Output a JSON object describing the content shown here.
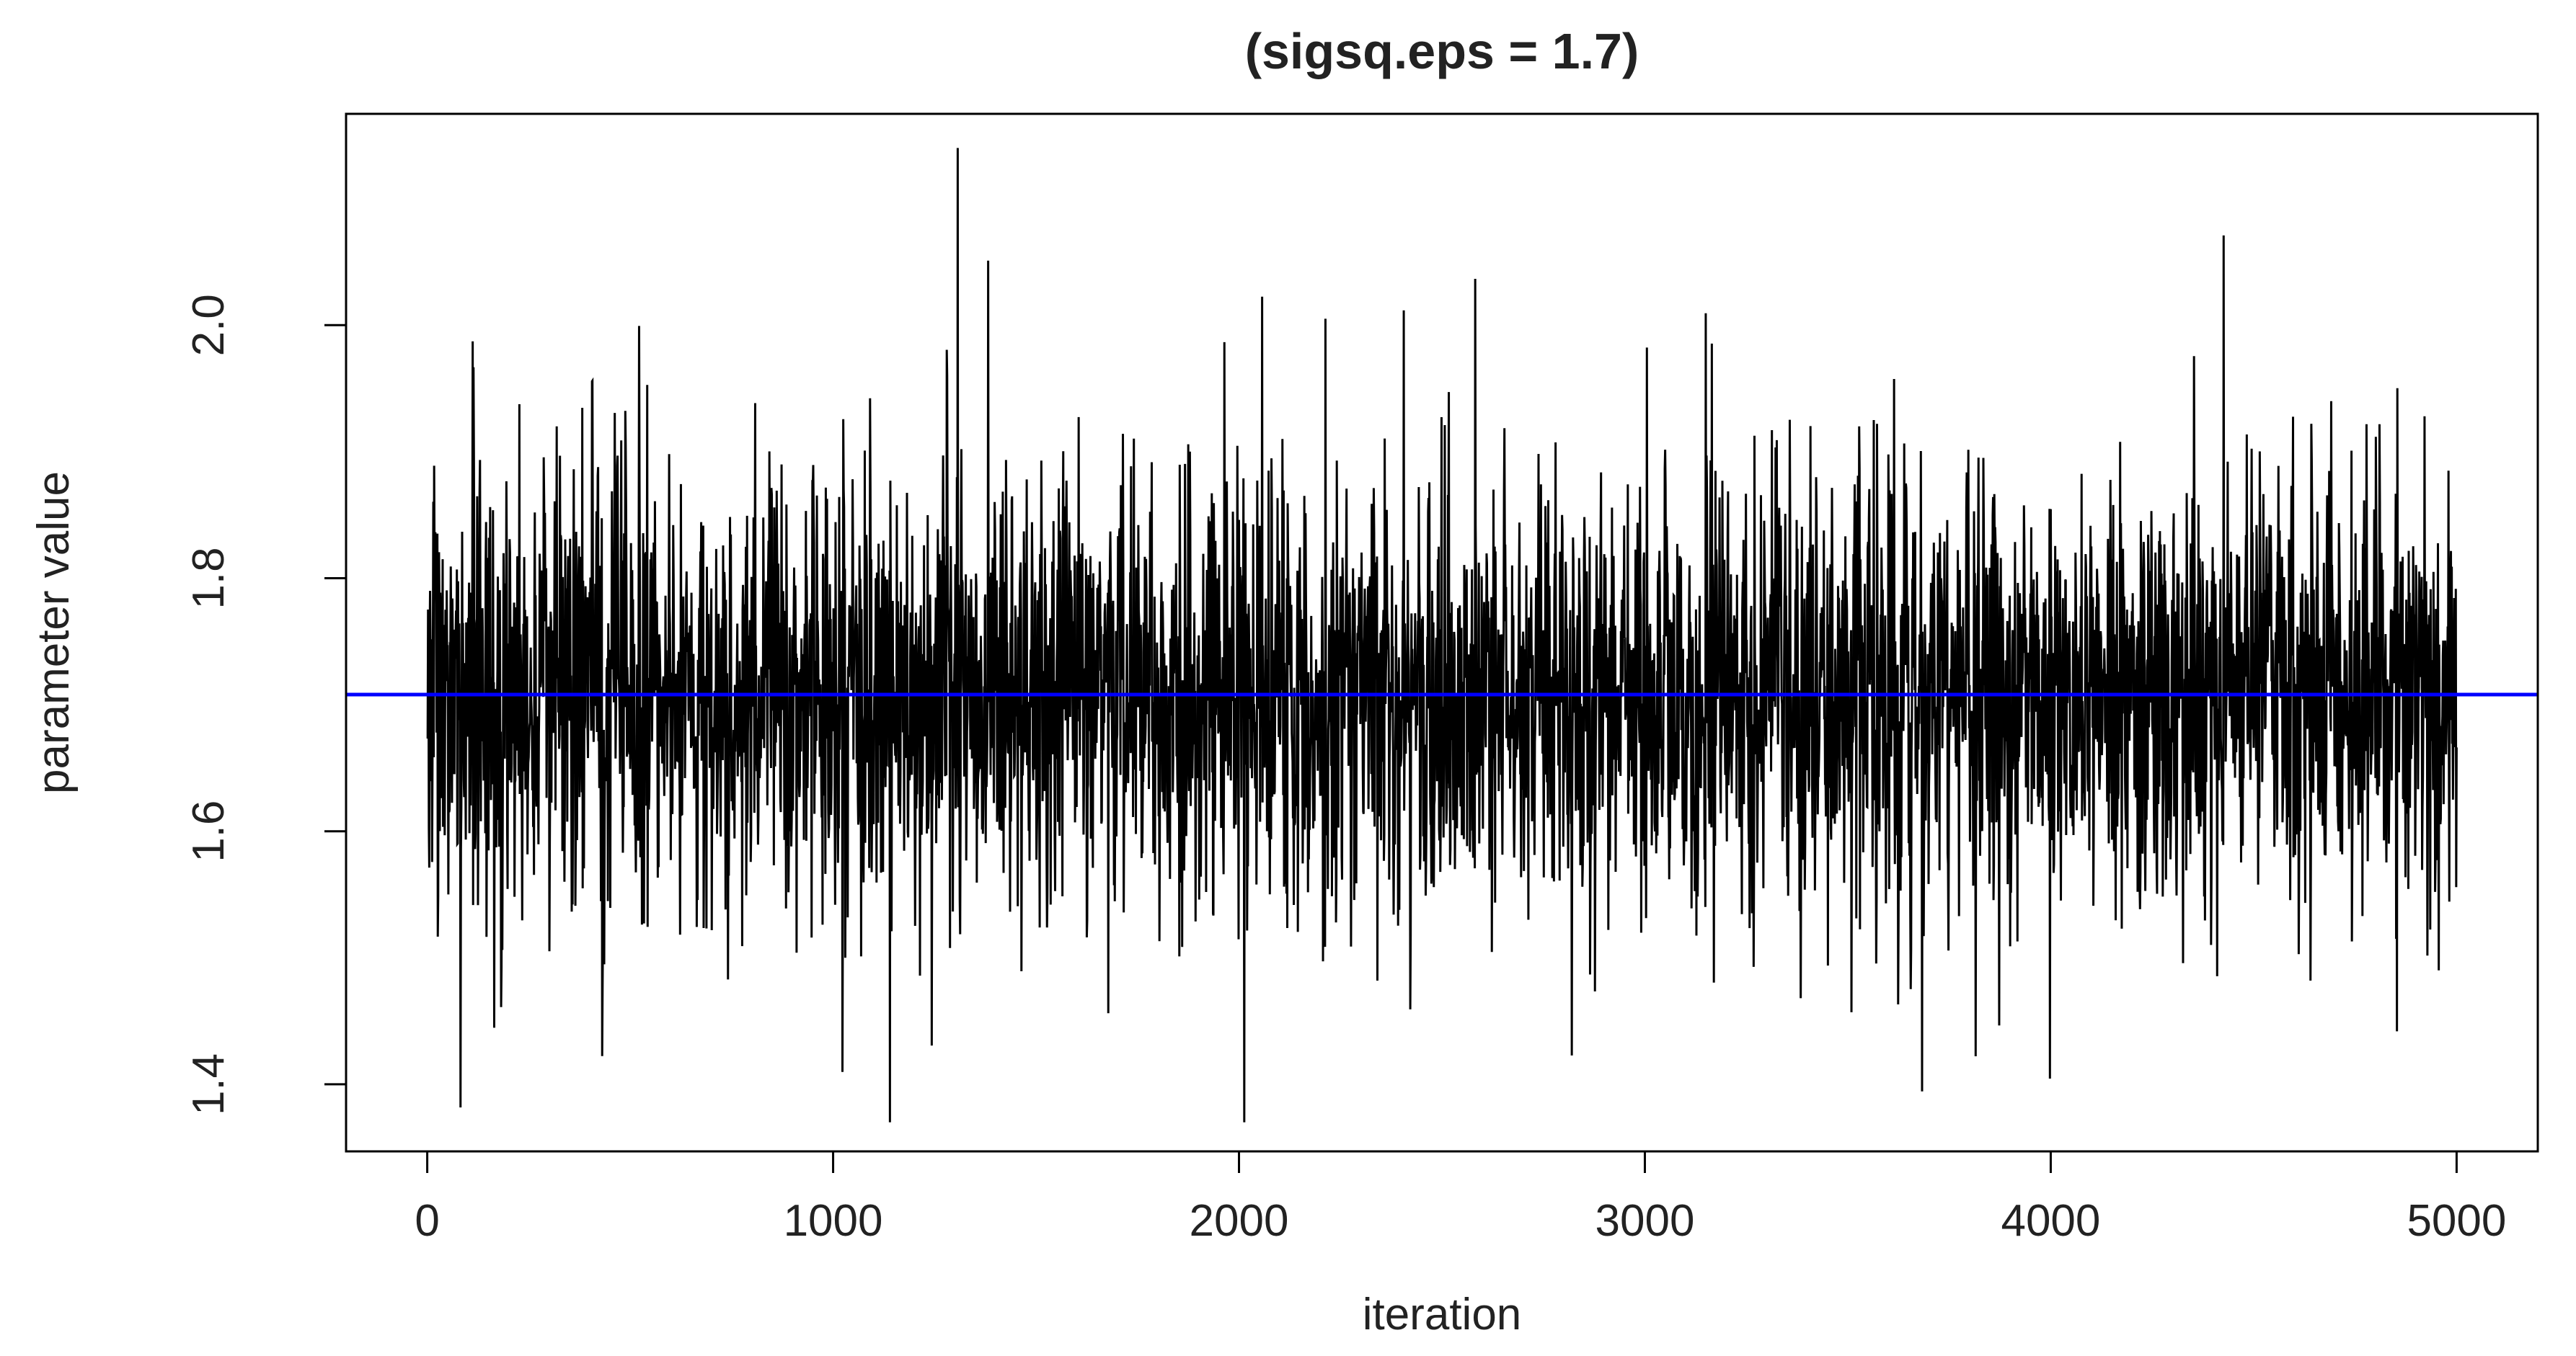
{
  "chart_data": {
    "type": "line",
    "title": "(sigsq.eps = 1.7)",
    "xlabel": "iteration",
    "ylabel": "parameter value",
    "xlim": [
      -200,
      5200
    ],
    "ylim": [
      1.347,
      2.167
    ],
    "x_ticks": [
      0,
      1000,
      2000,
      3000,
      4000,
      5000
    ],
    "x_tick_labels": [
      "0",
      "1000",
      "2000",
      "3000",
      "4000",
      "5000"
    ],
    "y_ticks": [
      1.4,
      1.6,
      1.8,
      2.0
    ],
    "y_tick_labels": [
      "1.4",
      "1.6",
      "1.8",
      "2.0"
    ],
    "grid": false,
    "legend": "none",
    "series": [
      {
        "style": "trace",
        "n_iterations": 5000,
        "range": [
          1.37,
          2.14
        ],
        "center": 1.708,
        "color": "#000000"
      }
    ],
    "reference_line": {
      "y": 1.708,
      "color": "#0000ff"
    }
  }
}
